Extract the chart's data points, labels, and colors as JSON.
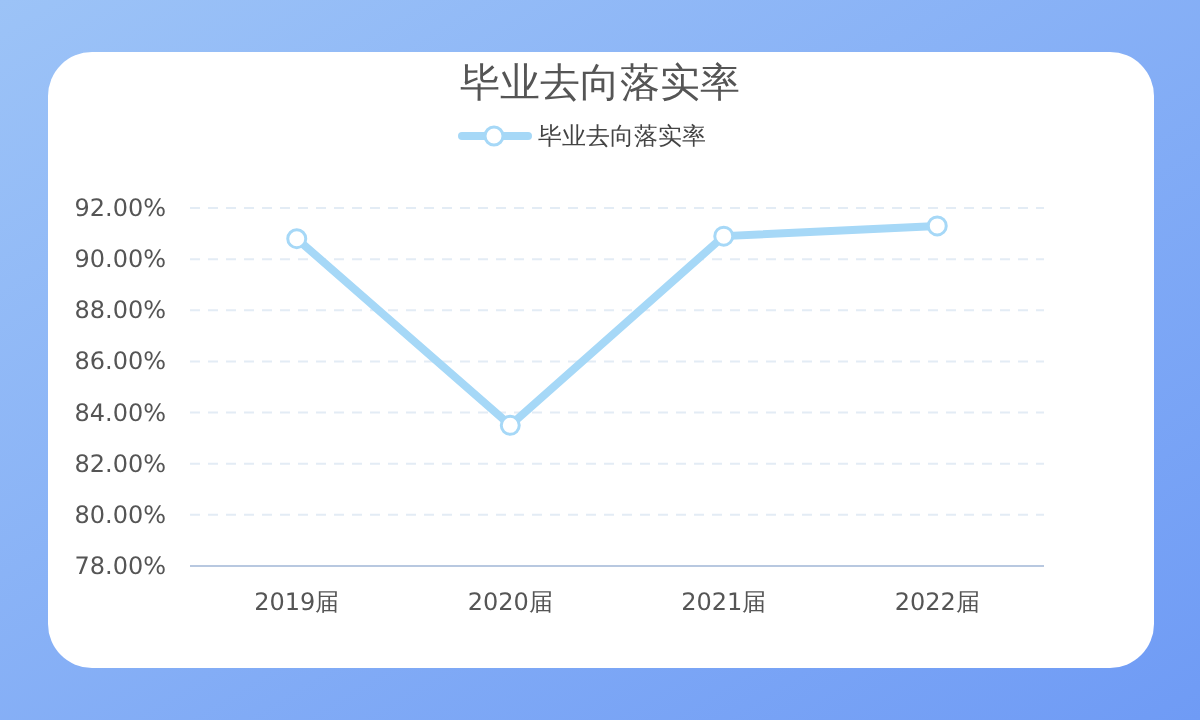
{
  "chart_data": {
    "type": "line",
    "title": "毕业去向落实率",
    "categories": [
      "2019届",
      "2020届",
      "2021届",
      "2022届"
    ],
    "series": [
      {
        "name": "毕业去向落实率",
        "color": "#a6d8f7",
        "values": [
          90.8,
          83.5,
          90.9,
          91.3
        ]
      }
    ],
    "ylim": [
      78,
      92
    ],
    "yticks": [
      {
        "value": 78,
        "label": "78.00%"
      },
      {
        "value": 80,
        "label": "80.00%"
      },
      {
        "value": 82,
        "label": "82.00%"
      },
      {
        "value": 84,
        "label": "84.00%"
      },
      {
        "value": 86,
        "label": "86.00%"
      },
      {
        "value": 88,
        "label": "88.00%"
      },
      {
        "value": 90,
        "label": "90.00%"
      },
      {
        "value": 92,
        "label": "92.00%"
      }
    ],
    "grid": "y",
    "legend": "top",
    "marker": "circle",
    "line_style": "solid"
  }
}
